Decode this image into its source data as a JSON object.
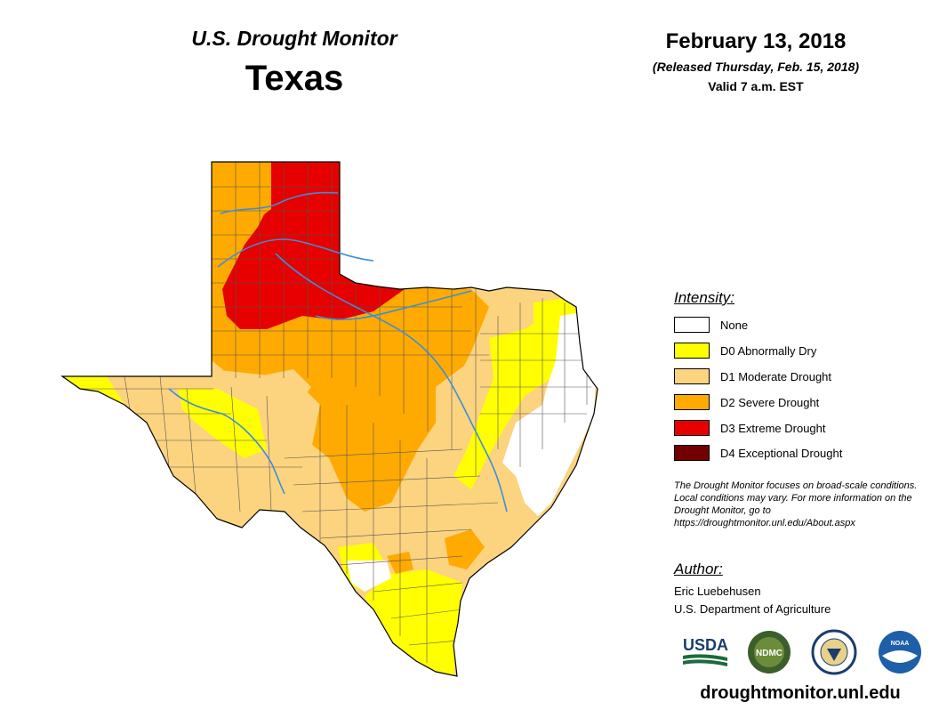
{
  "header": {
    "subtitle": "U.S. Drought Monitor",
    "state": "Texas",
    "date": "February 13, 2018",
    "released": "(Released Thursday, Feb. 15, 2018)",
    "valid": "Valid 7 a.m. EST"
  },
  "legend": {
    "title": "Intensity:",
    "items": [
      {
        "label": "None",
        "color": "#ffffff"
      },
      {
        "label": "D0 Abnormally Dry",
        "color": "#ffff00"
      },
      {
        "label": "D1 Moderate Drought",
        "color": "#fcd37f"
      },
      {
        "label": "D2 Severe Drought",
        "color": "#ffaa00"
      },
      {
        "label": "D3 Extreme Drought",
        "color": "#e60000"
      },
      {
        "label": "D4 Exceptional Drought",
        "color": "#730000"
      }
    ]
  },
  "note": "The Drought Monitor focuses on broad-scale conditions. Local conditions may vary. For more information on the Drought Monitor, go to https://droughtmonitor.unl.edu/About.aspx",
  "author": {
    "title": "Author:",
    "name": "Eric Luebehusen",
    "org": "U.S. Department of Agriculture"
  },
  "logos": {
    "usda": "USDA",
    "ndmc": "NDMC",
    "noaa": "NOAA"
  },
  "footer_url": "droughtmonitor.unl.edu",
  "colors": {
    "river": "#3a8fd9",
    "county_line": "#555555"
  }
}
